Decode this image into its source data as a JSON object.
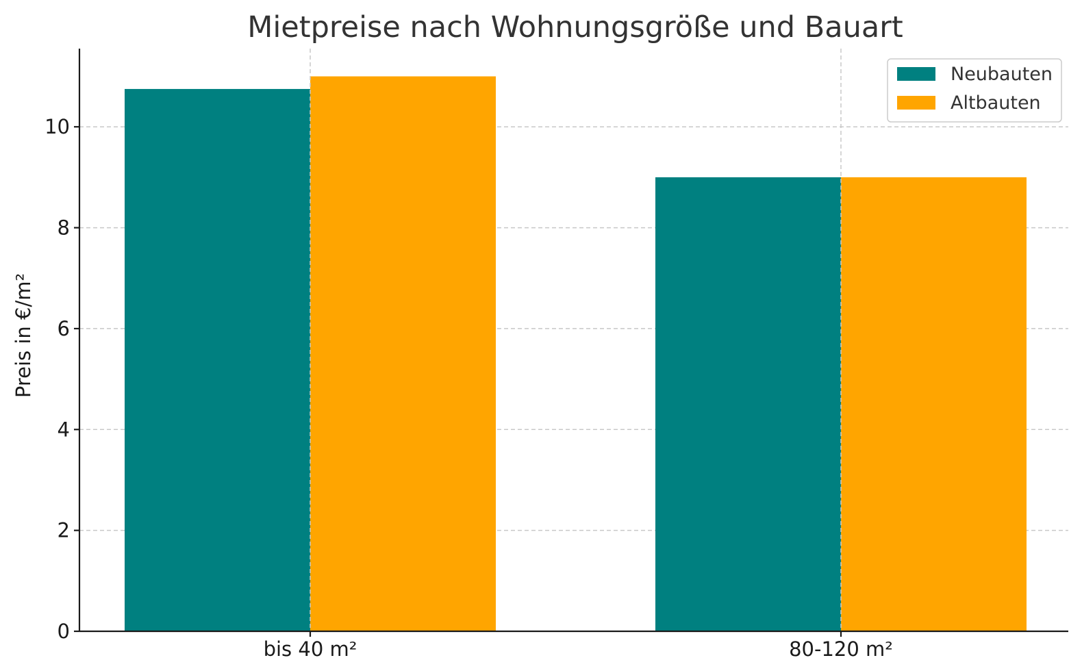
{
  "chart_data": {
    "type": "bar",
    "title": "Mietpreise nach Wohnungsgröße und Bauart",
    "xlabel": "",
    "ylabel": "Preis in €/m²",
    "categories": [
      "bis 40 m²",
      "80-120 m²"
    ],
    "series": [
      {
        "name": "Neubauten",
        "values": [
          10.75,
          9.0
        ],
        "color": "#008080"
      },
      {
        "name": "Altbauten",
        "values": [
          11.0,
          9.0
        ],
        "color": "#FFA500"
      }
    ],
    "ylim": [
      0,
      11.55
    ],
    "yticks": [
      0,
      2,
      4,
      6,
      8,
      10
    ],
    "grid": true,
    "legend_position": "top-right"
  }
}
